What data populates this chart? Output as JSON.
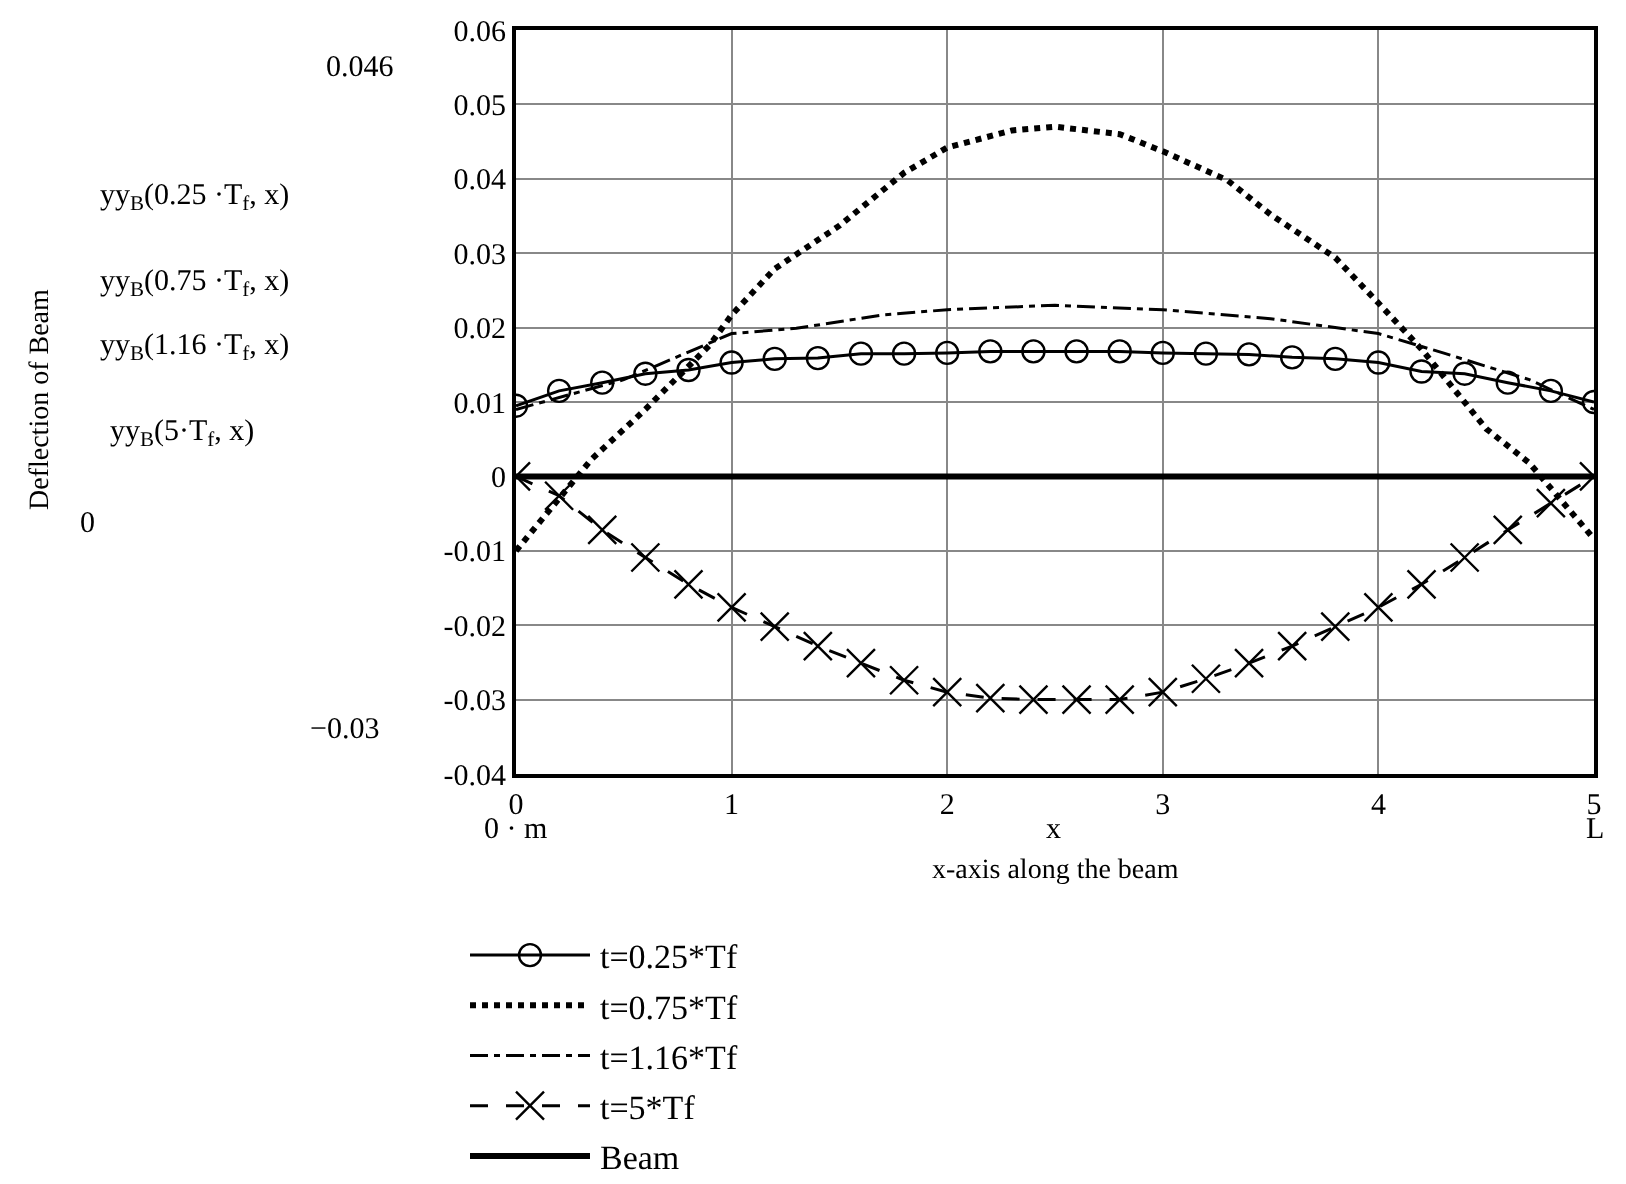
{
  "chart_data": {
    "type": "line",
    "xlabel": "x-axis along the beam",
    "x": [
      0,
      0.2,
      0.4,
      0.6,
      0.8,
      1.0,
      1.2,
      1.4,
      1.6,
      1.8,
      2.0,
      2.2,
      2.4,
      2.6,
      2.8,
      3.0,
      3.2,
      3.4,
      3.6,
      3.8,
      4.0,
      4.2,
      4.4,
      4.6,
      4.8,
      5.0
    ],
    "series": [
      {
        "name": "t=0.25*Tf",
        "color": "#000000",
        "marker": "circle",
        "line_style": "solid",
        "values": [
          0.0095,
          0.0115,
          0.0126,
          0.0138,
          0.0143,
          0.0153,
          0.0158,
          0.0159,
          0.0165,
          0.0165,
          0.0166,
          0.0168,
          0.0168,
          0.0168,
          0.0168,
          0.0166,
          0.0165,
          0.0164,
          0.016,
          0.0158,
          0.0153,
          0.0141,
          0.0138,
          0.0126,
          0.0115,
          0.01
        ]
      },
      {
        "name": "t=0.75*Tf",
        "color": "#000000",
        "marker": "none",
        "line_style": "dotted",
        "x": [
          0,
          0.35,
          0.6,
          0.9,
          1.0,
          1.2,
          1.5,
          1.8,
          2.0,
          2.3,
          2.5,
          2.8,
          3.0,
          3.3,
          3.5,
          3.8,
          4.0,
          4.2,
          4.5,
          4.7,
          5.0
        ],
        "values": [
          -0.01,
          0.0023,
          0.009,
          0.0177,
          0.0217,
          0.0279,
          0.0337,
          0.0408,
          0.0442,
          0.0465,
          0.047,
          0.046,
          0.0437,
          0.0398,
          0.0352,
          0.0294,
          0.0233,
          0.0171,
          0.0064,
          0.0018,
          -0.0084
        ]
      },
      {
        "name": "t=1.16*Tf",
        "color": "#000000",
        "marker": "none",
        "line_style": "dashdot",
        "x": [
          0,
          0.5,
          1.0,
          1.3,
          1.7,
          2.0,
          2.5,
          3.0,
          3.5,
          4.0,
          4.3,
          4.7,
          5.0
        ],
        "values": [
          0.009,
          0.013,
          0.0192,
          0.0199,
          0.0217,
          0.0224,
          0.023,
          0.0224,
          0.0212,
          0.0192,
          0.0166,
          0.013,
          0.009
        ]
      },
      {
        "name": "t=5*Tf",
        "color": "#000000",
        "marker": "cross",
        "line_style": "dashed",
        "values": [
          0,
          -0.0026,
          -0.0072,
          -0.0109,
          -0.0145,
          -0.0176,
          -0.0202,
          -0.0228,
          -0.0251,
          -0.0274,
          -0.029,
          -0.0298,
          -0.03,
          -0.03,
          -0.03,
          -0.029,
          -0.0272,
          -0.0251,
          -0.0228,
          -0.0202,
          -0.0176,
          -0.0145,
          -0.0109,
          -0.0072,
          -0.0036,
          0
        ]
      },
      {
        "name": "Beam",
        "color": "#000000",
        "marker": "none",
        "line_style": "solid",
        "x": [
          0,
          5
        ],
        "values": [
          0,
          0
        ]
      }
    ],
    "xlim": [
      0,
      5
    ],
    "xticks": [
      0,
      1,
      2,
      3,
      4,
      5
    ],
    "ylim": [
      -0.04,
      0.06
    ],
    "yticks": [
      -0.04,
      -0.03,
      -0.02,
      -0.01,
      0,
      0.01,
      0.02,
      0.03,
      0.04,
      0.05,
      0.06
    ],
    "grid": true,
    "legend": "bottom left",
    "annotations": [
      "0.046",
      "−0.03",
      "yy$_{B}$(0.25 ·T$_{f}$, x)",
      "yy$_{B}$(0.75 ·T$_{f}$, x)",
      "yy$_{B}$(1.16 ·T$_{f}$, x)",
      "yy$_{B}$(5·T$_{f}$, x)",
      "0",
      "0 · m",
      "x",
      "L",
      "Deflection of Beam"
    ]
  }
}
